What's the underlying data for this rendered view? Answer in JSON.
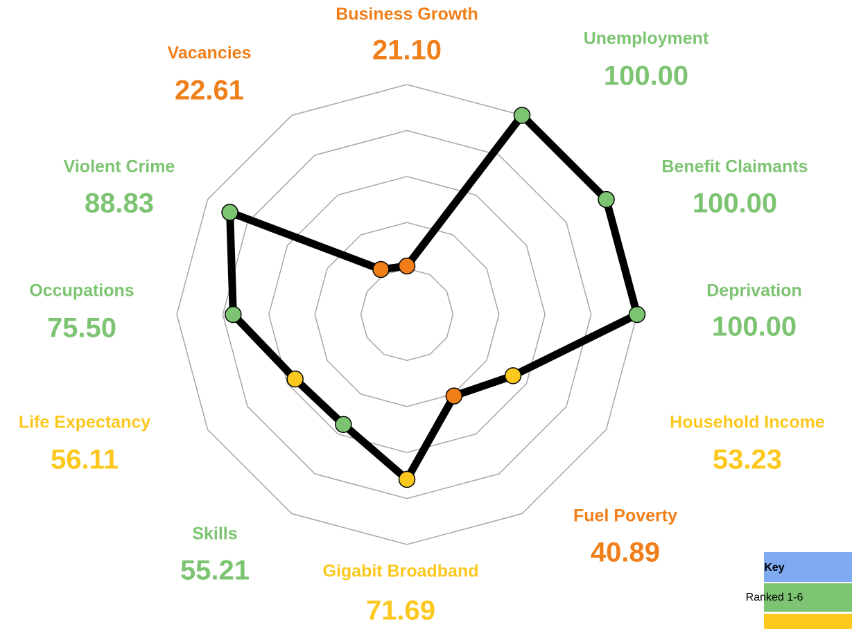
{
  "chart_data": {
    "type": "radar",
    "categories": [
      "Business Growth",
      "Unemployment",
      "Benefit Claimants",
      "Deprivation",
      "Household Income",
      "Fuel Poverty",
      "Gigabit Broadband",
      "Skills",
      "Life Expectancy",
      "Occupations",
      "Violent Crime",
      "Vacancies"
    ],
    "values": [
      21.1,
      100.0,
      100.0,
      100.0,
      53.23,
      40.89,
      71.69,
      55.21,
      56.11,
      75.5,
      88.83,
      22.61
    ],
    "value_labels": [
      "21.10",
      "100.00",
      "100.00",
      "100.00",
      "53.23",
      "40.89",
      "71.69",
      "55.21",
      "56.11",
      "75.50",
      "88.83",
      "22.61"
    ],
    "colors": [
      "#f07f1a",
      "#7dc472",
      "#7dc472",
      "#7dc472",
      "#fcc81e",
      "#f07f1a",
      "#fcc81e",
      "#7dc472",
      "#fcc81e",
      "#7dc472",
      "#7dc472",
      "#f07f1a"
    ],
    "line_color": "#000000",
    "rlim": [
      0,
      100
    ],
    "rticks": [
      20,
      40,
      60,
      80,
      100
    ],
    "key": {
      "title": "Key",
      "items": [
        {
          "label": "Ranked 1-6",
          "color": "#7dc472"
        }
      ],
      "title_color": "#7faaf2",
      "extra_color": "#fcc81e"
    }
  }
}
